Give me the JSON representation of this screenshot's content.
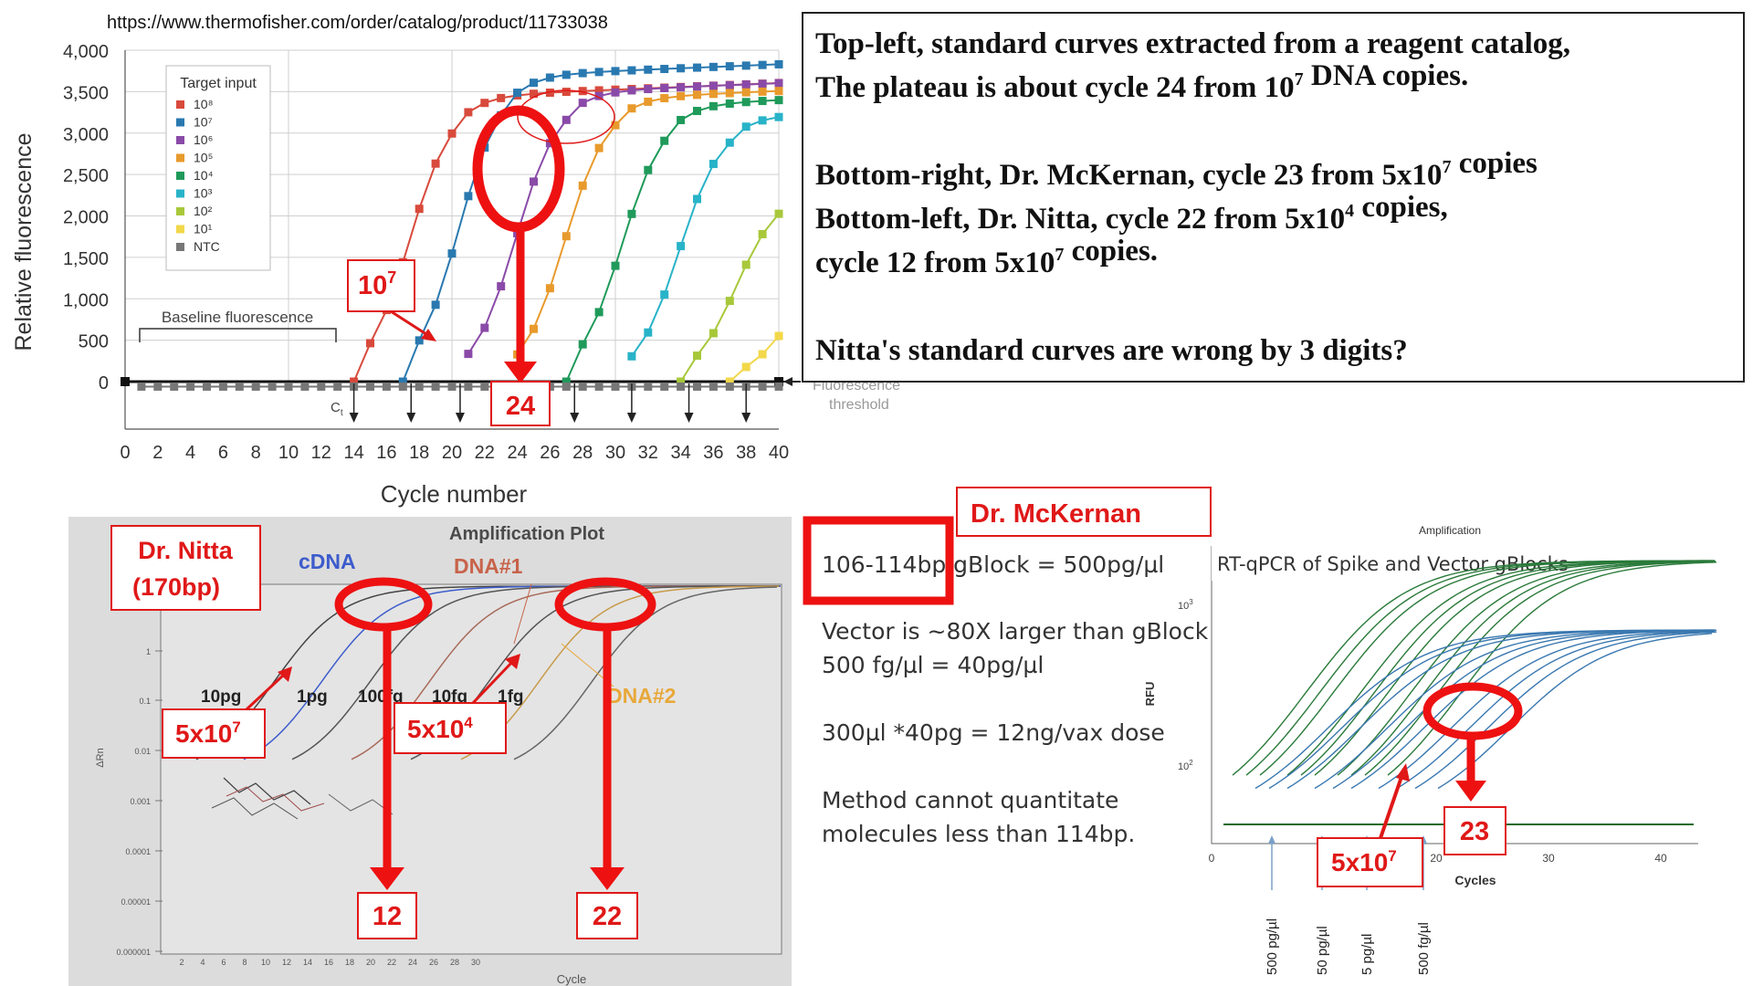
{
  "source_url": "https://www.thermofisher.com/order/catalog/product/11733038",
  "explanation": {
    "lines": [
      [
        {
          "t": "Top-left, standard curves extracted from a reagent catalog,"
        }
      ],
      [
        {
          "t": "The plateau is about cycle 24 from 10"
        },
        {
          "t": "7",
          "sup": true
        },
        {
          "t": " DNA copies."
        }
      ],
      [],
      [
        {
          "t": "Bottom-right, Dr. McKernan, cycle 23 from 5x10"
        },
        {
          "t": "7",
          "sup": true
        },
        {
          "t": " copies"
        }
      ],
      [
        {
          "t": "Bottom-left, Dr. Nitta, cycle 22 from 5x10"
        },
        {
          "t": "4",
          "sup": true
        },
        {
          "t": " copies,"
        }
      ],
      [
        {
          "t": "cycle 12 from 5x10"
        },
        {
          "t": "7",
          "sup": true
        },
        {
          "t": " copies."
        }
      ],
      [],
      [
        {
          "t": "Nitta's standard curves are wrong by 3 digits?"
        }
      ]
    ]
  },
  "notes": {
    "gblock": "106-114bp gBlock = 500pg/µl",
    "lines": [
      "Vector is ~80X larger than gBlock",
      "500 fg/µl = 40pg/µl",
      "",
      "300µl *40pg = 12ng/vax dose",
      "",
      "Method cannot quantitate",
      "molecules less than 114bp."
    ]
  },
  "chart_data": [
    {
      "type": "line",
      "xlabel": "Cycle number",
      "ylabel": "Relative fluorescence",
      "xlim": [
        0,
        40
      ],
      "ylim": [
        0,
        4000
      ],
      "x_ticks": [
        0,
        2,
        4,
        6,
        8,
        10,
        12,
        14,
        16,
        18,
        20,
        22,
        24,
        26,
        28,
        30,
        32,
        34,
        36,
        38,
        40
      ],
      "y_ticks": [
        0,
        500,
        1000,
        1500,
        2000,
        2500,
        3000,
        3500,
        4000
      ],
      "y_tick_labels": [
        "0",
        "500",
        "1,000",
        "1,500",
        "2,000",
        "2,500",
        "3,000",
        "3,500",
        "4,000"
      ],
      "legend_title": "Target input",
      "legend_placement": "top-left",
      "series": [
        {
          "name": "10⁸",
          "color": "#d84a3c",
          "ct": 14.5,
          "plateau": 3400
        },
        {
          "name": "10⁷",
          "color": "#2979b0",
          "ct": 17.5,
          "plateau": 3650
        },
        {
          "name": "10⁶",
          "color": "#8a4aa8",
          "ct": 21.0,
          "plateau": 3450
        },
        {
          "name": "10⁵",
          "color": "#e89a2c",
          "ct": 24.0,
          "plateau": 3380
        },
        {
          "name": "10⁴",
          "color": "#1f9a5a",
          "ct": 27.5,
          "plateau": 3300
        },
        {
          "name": "10³",
          "color": "#28b3c8",
          "ct": 31.0,
          "plateau": 3150
        },
        {
          "name": "10²",
          "color": "#a8c83a",
          "ct": 34.5,
          "plateau": 2300
        },
        {
          "name": "10¹",
          "color": "#f2d84a",
          "ct": 37.5,
          "plateau": 1300
        },
        {
          "name": "NTC",
          "color": "#777777",
          "ct": null,
          "level": -60
        }
      ],
      "ct_markers": [
        14,
        17.5,
        20.5,
        24,
        27.5,
        31,
        34.5,
        38
      ],
      "baseline_label": "Baseline fluorescence",
      "threshold_label_1": "Fluorescence",
      "threshold_label_2": "threshold",
      "ct_label": "C",
      "ct_label_sub": "t",
      "annotations": {
        "label_10_7": {
          "base": "10",
          "sup": "7"
        },
        "cycle_box": "24"
      }
    },
    {
      "type": "line",
      "title": "Amplification Plot",
      "xlabel": "Cycle",
      "ylabel": "ΔRn",
      "y_scale": "log",
      "y_tick_labels": [
        "0.000001",
        "0.00001",
        "0.0001",
        "0.001",
        "0.01",
        "0.1",
        "1"
      ],
      "x_tick_labels": [
        "2",
        "4",
        "6",
        "8",
        "10",
        "12",
        "14",
        "16",
        "18",
        "20",
        "22",
        "24",
        "26",
        "28",
        "30"
      ],
      "series_labels": [
        {
          "text": "cDNA",
          "color": "#3d5ccc"
        },
        {
          "text": "DNA#1",
          "color": "#c8634a"
        },
        {
          "text": "DNA#2",
          "color": "#e8a83a"
        }
      ],
      "dilution_labels": [
        "10pg",
        "1pg",
        "100fg",
        "10fg",
        "1fg"
      ],
      "annotations": {
        "title_box": [
          "Dr. Nitta",
          "(170bp)"
        ],
        "label_5x10_7": {
          "base": "5x10",
          "sup": "7"
        },
        "label_5x10_4": {
          "base": "5x10",
          "sup": "4"
        },
        "cycle_box_a": "12",
        "cycle_box_b": "22"
      }
    },
    {
      "type": "line",
      "title": "Amplification",
      "plot_title": "RT-qPCR of Spike and Vector gBlocks",
      "xlabel": "Cycles",
      "ylabel": "RFU",
      "y_scale": "log",
      "x_tick_labels": [
        "0",
        "10",
        "20",
        "30",
        "40"
      ],
      "y_tick_labels": [
        {
          "base": "10",
          "sup": "2"
        },
        {
          "base": "10",
          "sup": "3"
        }
      ],
      "concentration_labels": [
        "500 pg/µl",
        "50 pg/µl",
        "5 pg/µl",
        "500 fg/µl"
      ],
      "annotations": {
        "title_box": "Dr. McKernan",
        "label_5x10_7": {
          "base": "5x10",
          "sup": "7"
        },
        "cycle_box": "23"
      }
    }
  ]
}
